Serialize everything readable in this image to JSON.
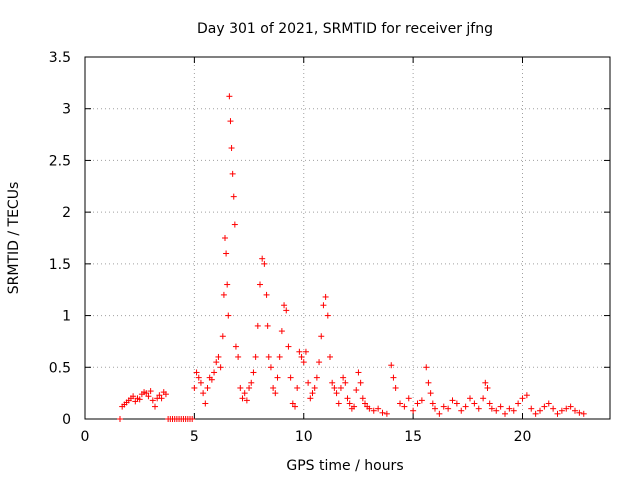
{
  "chart_data": {
    "type": "scatter",
    "title": "Day 301 of 2021, SRMTID for receiver jfng",
    "xlabel": "GPS time / hours",
    "ylabel": "SRMTID / TECUs",
    "xlim": [
      0,
      24
    ],
    "ylim": [
      0,
      3.5
    ],
    "xticks": [
      0,
      5,
      10,
      15,
      20
    ],
    "xtick_labels": [
      "0",
      "5",
      "10",
      "15",
      "20"
    ],
    "yticks": [
      0,
      0.5,
      1,
      1.5,
      2,
      2.5,
      3,
      3.5
    ],
    "ytick_labels": [
      "0",
      "0.5",
      "1",
      "1.5",
      "2",
      "2.5",
      "3",
      "3.5"
    ],
    "grid": true,
    "marker": "+",
    "color": "#ff0000",
    "series": [
      {
        "name": "jfng",
        "x": [
          1.6,
          1.7,
          1.8,
          1.9,
          2.0,
          2.1,
          2.2,
          2.3,
          2.4,
          2.5,
          2.6,
          2.7,
          2.8,
          2.9,
          3.0,
          3.1,
          3.2,
          3.3,
          3.4,
          3.5,
          3.6,
          3.7,
          3.8,
          3.9,
          4.0,
          4.1,
          4.2,
          4.3,
          4.4,
          4.5,
          4.6,
          4.7,
          4.8,
          4.9,
          5.0,
          5.1,
          5.2,
          5.3,
          5.4,
          5.5,
          5.6,
          5.7,
          5.8,
          5.9,
          6.0,
          6.1,
          6.2,
          6.3,
          6.35,
          6.4,
          6.45,
          6.5,
          6.55,
          6.6,
          6.65,
          6.7,
          6.75,
          6.8,
          6.85,
          6.9,
          7.0,
          7.1,
          7.2,
          7.3,
          7.4,
          7.5,
          7.6,
          7.7,
          7.8,
          7.9,
          8.0,
          8.1,
          8.2,
          8.3,
          8.35,
          8.4,
          8.5,
          8.6,
          8.7,
          8.8,
          8.9,
          9.0,
          9.1,
          9.2,
          9.3,
          9.4,
          9.5,
          9.6,
          9.7,
          9.8,
          9.9,
          10.0,
          10.1,
          10.2,
          10.3,
          10.4,
          10.5,
          10.6,
          10.7,
          10.8,
          10.9,
          11.0,
          11.1,
          11.2,
          11.3,
          11.4,
          11.5,
          11.6,
          11.7,
          11.8,
          11.9,
          12.0,
          12.1,
          12.2,
          12.3,
          12.4,
          12.5,
          12.6,
          12.7,
          12.8,
          12.9,
          13.0,
          13.2,
          13.4,
          13.6,
          13.8,
          14.0,
          14.1,
          14.2,
          14.4,
          14.6,
          14.8,
          15.0,
          15.2,
          15.4,
          15.6,
          15.7,
          15.8,
          15.9,
          16.0,
          16.2,
          16.4,
          16.6,
          16.8,
          17.0,
          17.2,
          17.4,
          17.6,
          17.8,
          18.0,
          18.2,
          18.3,
          18.4,
          18.5,
          18.6,
          18.8,
          19.0,
          19.2,
          19.4,
          19.6,
          19.8,
          20.0,
          20.2,
          20.4,
          20.6,
          20.8,
          21.0,
          21.2,
          21.4,
          21.6,
          21.8,
          22.0,
          22.2,
          22.4,
          22.6,
          22.8
        ],
        "y": [
          0.0,
          0.12,
          0.14,
          0.16,
          0.18,
          0.2,
          0.22,
          0.17,
          0.2,
          0.19,
          0.24,
          0.26,
          0.25,
          0.22,
          0.27,
          0.18,
          0.12,
          0.2,
          0.23,
          0.2,
          0.26,
          0.24,
          0.0,
          0.0,
          0.0,
          0.0,
          0.0,
          0.0,
          0.0,
          0.0,
          0.0,
          0.0,
          0.0,
          0.0,
          0.3,
          0.45,
          0.4,
          0.35,
          0.25,
          0.15,
          0.3,
          0.4,
          0.38,
          0.45,
          0.55,
          0.6,
          0.5,
          0.8,
          1.2,
          1.75,
          1.6,
          1.3,
          1.0,
          3.12,
          2.88,
          2.62,
          2.37,
          2.15,
          1.88,
          0.7,
          0.6,
          0.3,
          0.2,
          0.25,
          0.18,
          0.3,
          0.35,
          0.45,
          0.6,
          0.9,
          1.3,
          1.55,
          1.5,
          1.2,
          0.9,
          0.6,
          0.5,
          0.3,
          0.25,
          0.4,
          0.6,
          0.85,
          1.1,
          1.05,
          0.7,
          0.4,
          0.15,
          0.12,
          0.3,
          0.65,
          0.6,
          0.55,
          0.65,
          0.35,
          0.2,
          0.25,
          0.3,
          0.4,
          0.55,
          0.8,
          1.1,
          1.18,
          1.0,
          0.6,
          0.35,
          0.3,
          0.25,
          0.15,
          0.3,
          0.4,
          0.35,
          0.2,
          0.15,
          0.1,
          0.12,
          0.28,
          0.45,
          0.35,
          0.2,
          0.15,
          0.12,
          0.1,
          0.08,
          0.1,
          0.06,
          0.05,
          0.52,
          0.4,
          0.3,
          0.15,
          0.12,
          0.2,
          0.08,
          0.15,
          0.18,
          0.5,
          0.35,
          0.25,
          0.15,
          0.1,
          0.05,
          0.12,
          0.1,
          0.18,
          0.15,
          0.08,
          0.12,
          0.2,
          0.15,
          0.1,
          0.2,
          0.35,
          0.3,
          0.15,
          0.1,
          0.08,
          0.12,
          0.05,
          0.1,
          0.08,
          0.15,
          0.2,
          0.23,
          0.1,
          0.05,
          0.08,
          0.12,
          0.15,
          0.1,
          0.05,
          0.08,
          0.1,
          0.12,
          0.08,
          0.06,
          0.05
        ]
      }
    ]
  }
}
